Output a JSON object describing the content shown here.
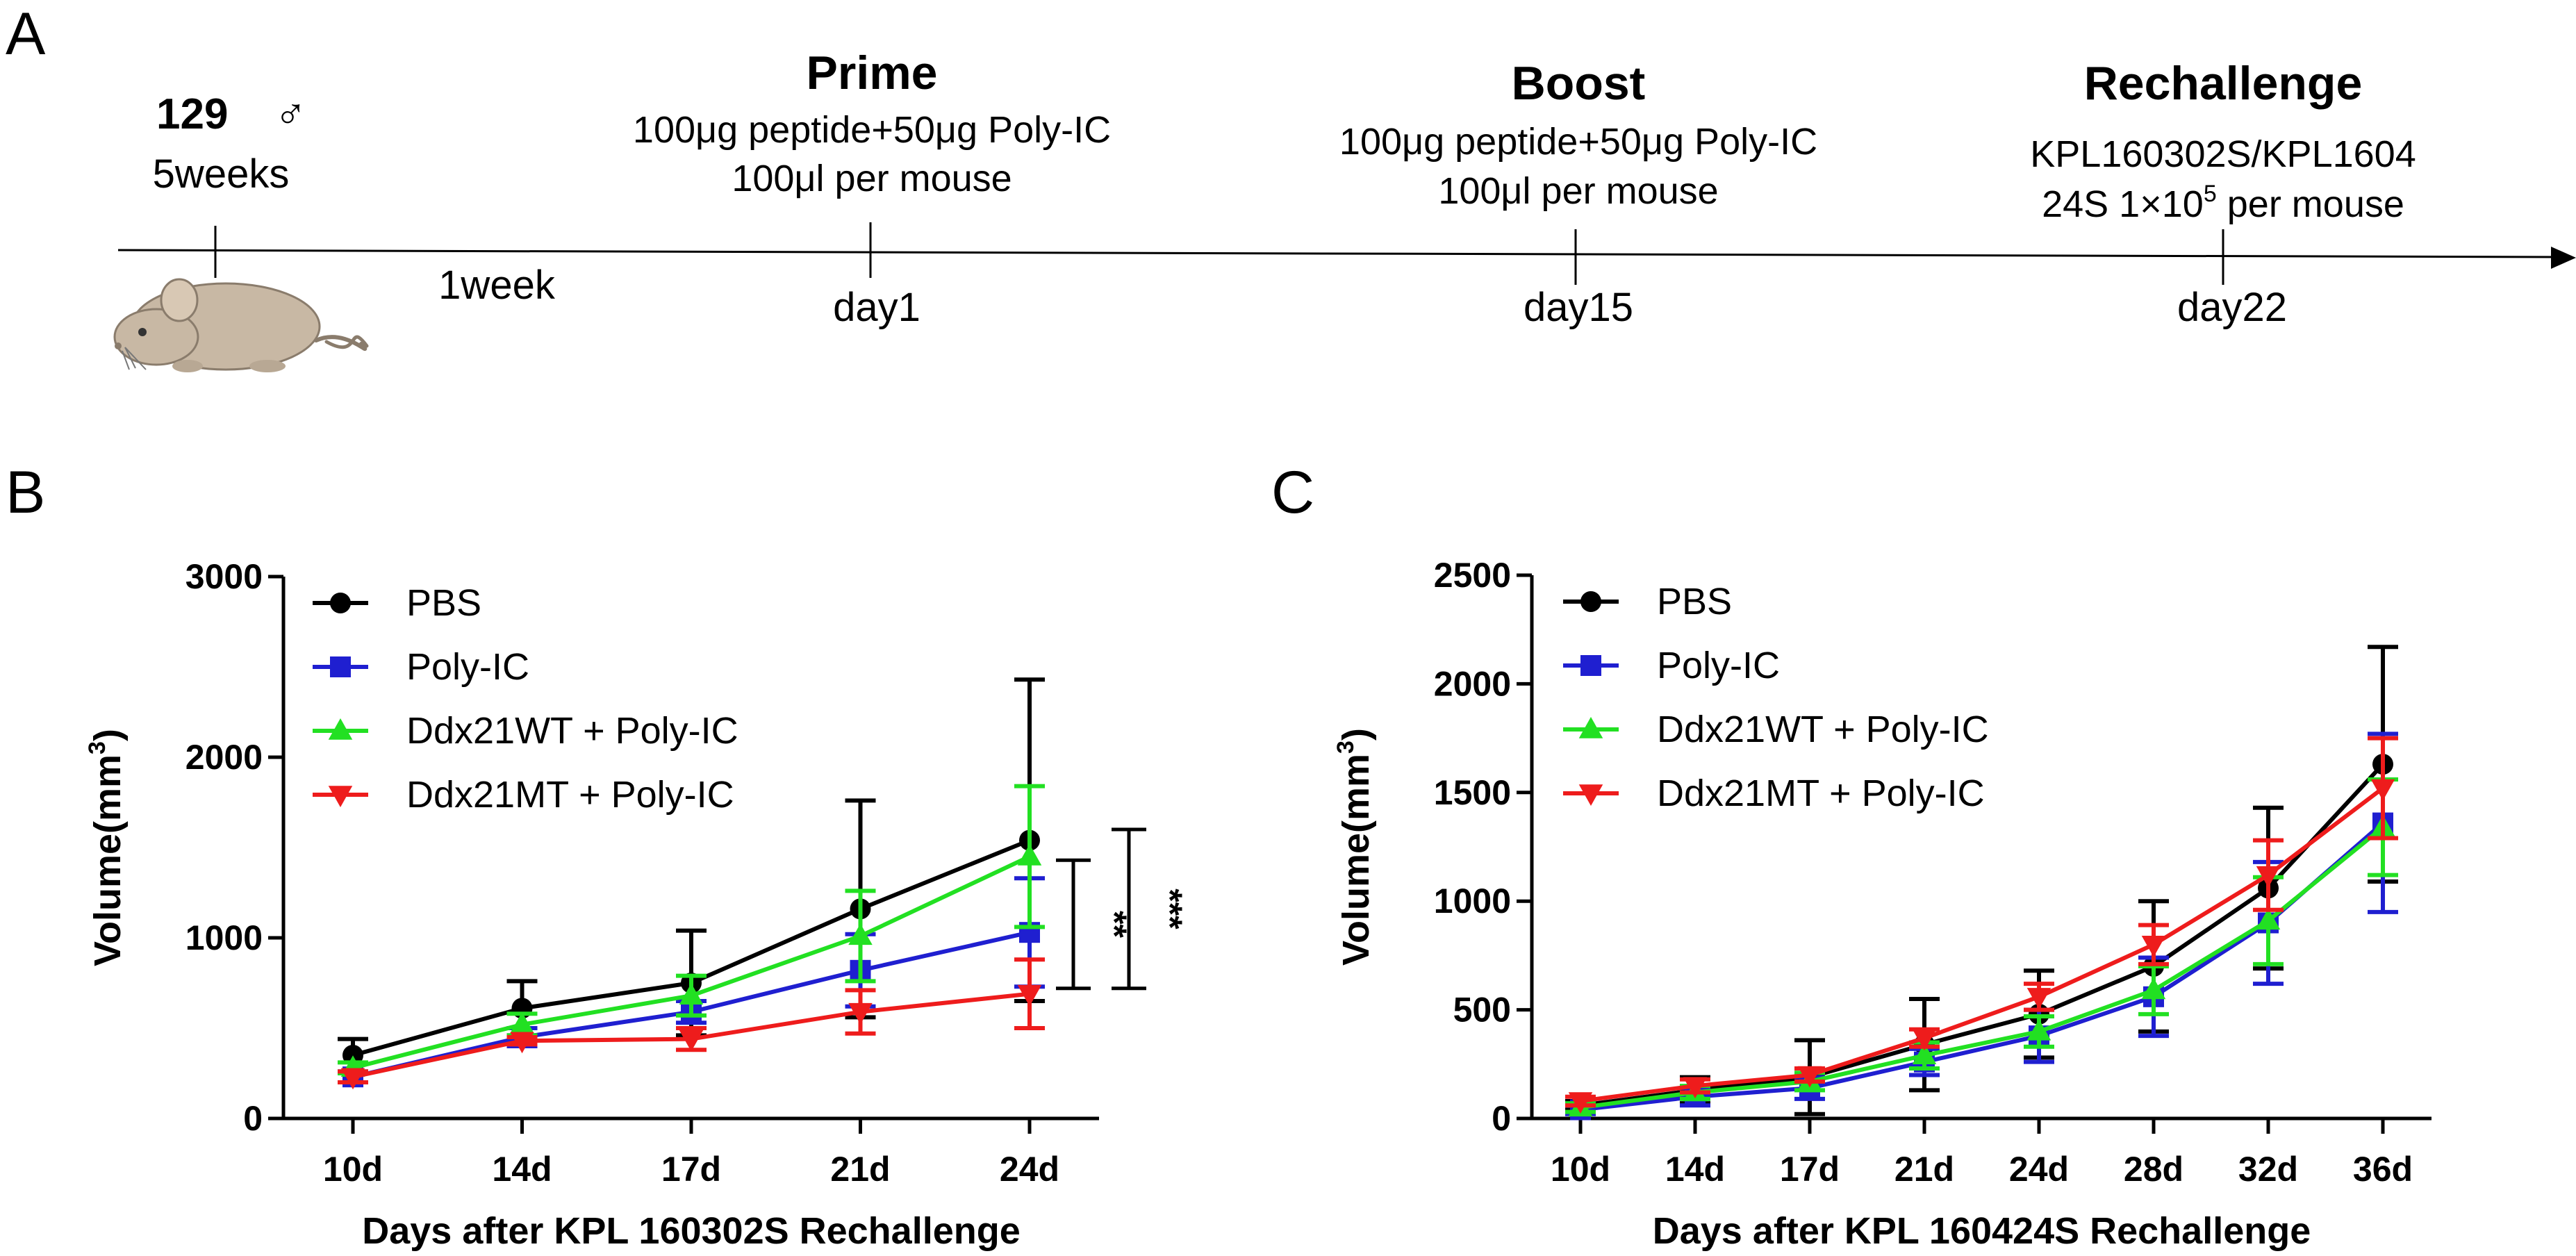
{
  "panel_a": {
    "label": "A",
    "mouse_strain": "129",
    "sex_symbol": "♂",
    "age": "5weeks",
    "interval": "1week",
    "events": [
      {
        "title": "Prime",
        "detail_1": "100μg peptide+50μg Poly-IC",
        "detail_2": "100μl per mouse",
        "day": "day1"
      },
      {
        "title": "Boost",
        "detail_1": "100μg peptide+50μg Poly-IC",
        "detail_2": "100μl per mouse",
        "day": "day15"
      },
      {
        "title": "Rechallenge",
        "detail_1": "KPL160302S/KPL1604",
        "detail_2": "24S 1×10",
        "detail_2_sup": "5",
        "detail_2_tail": "per mouse",
        "day": "day22"
      }
    ],
    "colors": {
      "mouse_body": "#c8b8a4",
      "mouse_outline": "#8a7c6c"
    }
  },
  "legend_series": [
    {
      "name": "PBS",
      "color": "#000000",
      "marker": "circle"
    },
    {
      "name": "Poly-IC",
      "color": "#1f1fd0",
      "marker": "square"
    },
    {
      "name": "Ddx21WT + Poly-IC",
      "color": "#22e022",
      "marker": "triangle-up"
    },
    {
      "name": "Ddx21MT + Poly-IC",
      "color": "#ee1c1c",
      "marker": "triangle-down"
    }
  ],
  "chart_data": [
    {
      "panel": "B",
      "type": "line",
      "title": "",
      "xlabel": "Days after KPL 160302S Rechallenge",
      "ylabel": "Volume(mm",
      "ylabel_sup": "3",
      "ylabel_tail": ")",
      "categories": [
        "10d",
        "14d",
        "17d",
        "21d",
        "24d"
      ],
      "ylim": [
        0,
        3000
      ],
      "yticks": [
        0,
        1000,
        2000,
        3000
      ],
      "series": [
        {
          "name": "PBS",
          "values": [
            350,
            610,
            750,
            1160,
            1540
          ],
          "err": [
            90,
            150,
            290,
            600,
            890
          ]
        },
        {
          "name": "Poly-IC",
          "values": [
            230,
            450,
            590,
            820,
            1030
          ],
          "err": [
            30,
            50,
            60,
            200,
            300
          ]
        },
        {
          "name": "Ddx21WT + Poly-IC",
          "values": [
            280,
            520,
            680,
            1010,
            1450
          ],
          "err": [
            30,
            60,
            110,
            250,
            390
          ]
        },
        {
          "name": "Ddx21MT + Poly-IC",
          "values": [
            230,
            430,
            440,
            590,
            690
          ],
          "err": [
            30,
            20,
            60,
            120,
            190
          ]
        }
      ],
      "significance": [
        {
          "label": "**",
          "y_top": 1430,
          "y_bottom": 720
        },
        {
          "label": "***",
          "y_top": 1600,
          "y_bottom": 720
        }
      ],
      "legend_position": "top-left"
    },
    {
      "panel": "C",
      "type": "line",
      "title": "",
      "xlabel": "Days after KPL 160424S Rechallenge",
      "ylabel": "Volume(mm",
      "ylabel_sup": "3",
      "ylabel_tail": ")",
      "categories": [
        "10d",
        "14d",
        "17d",
        "21d",
        "24d",
        "28d",
        "32d",
        "36d"
      ],
      "ylim": [
        0,
        2500
      ],
      "yticks": [
        0,
        500,
        1000,
        1500,
        2000,
        2500
      ],
      "series": [
        {
          "name": "PBS",
          "values": [
            60,
            130,
            190,
            340,
            480,
            700,
            1060,
            1630
          ],
          "err": [
            20,
            60,
            170,
            210,
            200,
            300,
            370,
            540
          ]
        },
        {
          "name": "Poly-IC",
          "values": [
            40,
            100,
            140,
            260,
            380,
            560,
            900,
            1360
          ],
          "err": [
            20,
            40,
            50,
            60,
            120,
            180,
            280,
            410
          ]
        },
        {
          "name": "Ddx21WT + Poly-IC",
          "values": [
            50,
            120,
            170,
            290,
            400,
            590,
            910,
            1340
          ],
          "err": [
            20,
            30,
            40,
            60,
            70,
            110,
            200,
            220
          ]
        },
        {
          "name": "Ddx21MT + Poly-IC",
          "values": [
            80,
            150,
            200,
            370,
            560,
            800,
            1120,
            1520
          ],
          "err": [
            20,
            30,
            30,
            40,
            60,
            90,
            160,
            230
          ]
        }
      ],
      "legend_position": "top-left"
    }
  ]
}
